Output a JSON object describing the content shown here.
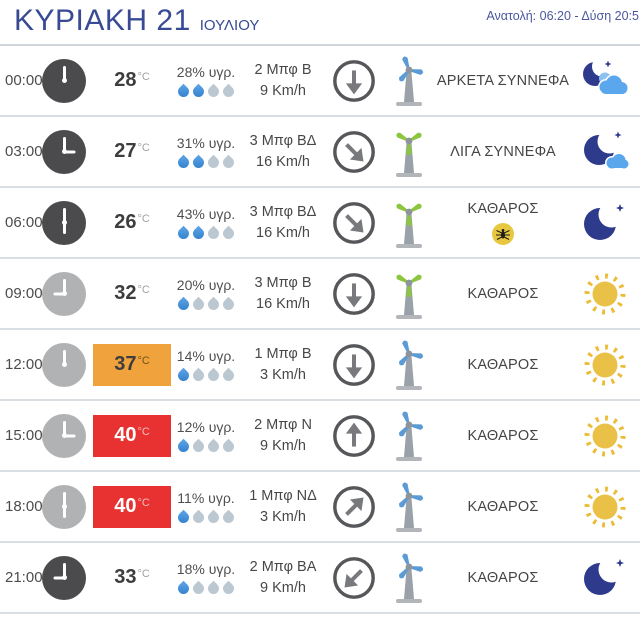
{
  "header": {
    "day": "ΚΥΡΙΑΚΗ 21",
    "month": "ΙΟΥΛΙΟΥ",
    "sun_times": "Ανατολή: 06:20 - Δύση 20:5"
  },
  "colors": {
    "accent_blue": "#394a94",
    "badge_orange": "#f0a23d",
    "badge_red": "#e73231",
    "drop_active": "#2e7cc9",
    "drop_inactive": "#bcc8d1",
    "turbine_blue": "#5b9bd5",
    "turbine_green": "#8cc63f",
    "moon_navy": "#2e3a8c",
    "sun_yellow": "#e9c147",
    "sun_ray_yellow": "#ecbc38",
    "cloud_blue": "#5aa7ee",
    "mosquito_yellow": "#e7c73f",
    "clock_night": "#4b4b4d",
    "clock_day": "#b1b2b4"
  },
  "rows": [
    {
      "time": "00:00",
      "period": "night",
      "clock_hour_deg": 0,
      "temp": "28",
      "temp_unit": "°C",
      "temp_badge": "none",
      "humidity": "28% υγρ.",
      "drops_active": 2,
      "drops_total": 4,
      "wind_beaufort": "2 Μπφ Β",
      "wind_speed": "9 Km/h",
      "wind_arrow_deg": 180,
      "turbine_color": "blue",
      "condition": "ΑΡΚΕΤΑ ΣΥΝΝΕΦΑ",
      "mosquito": false,
      "weather_icon": "moon-clouds"
    },
    {
      "time": "03:00",
      "period": "night",
      "clock_hour_deg": 90,
      "temp": "27",
      "temp_unit": "°C",
      "temp_badge": "none",
      "humidity": "31% υγρ.",
      "drops_active": 2,
      "drops_total": 4,
      "wind_beaufort": "3 Μπφ ΒΔ",
      "wind_speed": "16 Km/h",
      "wind_arrow_deg": 135,
      "turbine_color": "green",
      "condition": "ΛΙΓΑ ΣΥΝΝΕΦΑ",
      "mosquito": false,
      "weather_icon": "moon-few-clouds"
    },
    {
      "time": "06:00",
      "period": "night",
      "clock_hour_deg": 180,
      "temp": "26",
      "temp_unit": "°C",
      "temp_badge": "none",
      "humidity": "43% υγρ.",
      "drops_active": 2,
      "drops_total": 4,
      "wind_beaufort": "3 Μπφ ΒΔ",
      "wind_speed": "16 Km/h",
      "wind_arrow_deg": 135,
      "turbine_color": "green",
      "condition": "ΚΑΘΑΡΟΣ",
      "mosquito": true,
      "weather_icon": "moon"
    },
    {
      "time": "09:00",
      "period": "day",
      "clock_hour_deg": 270,
      "temp": "32",
      "temp_unit": "°C",
      "temp_badge": "none",
      "humidity": "20% υγρ.",
      "drops_active": 1,
      "drops_total": 4,
      "wind_beaufort": "3 Μπφ Β",
      "wind_speed": "16 Km/h",
      "wind_arrow_deg": 180,
      "turbine_color": "green",
      "condition": "ΚΑΘΑΡΟΣ",
      "mosquito": false,
      "weather_icon": "sun"
    },
    {
      "time": "12:00",
      "period": "day",
      "clock_hour_deg": 0,
      "temp": "37",
      "temp_unit": "°C",
      "temp_badge": "orange",
      "humidity": "14% υγρ.",
      "drops_active": 1,
      "drops_total": 4,
      "wind_beaufort": "1 Μπφ Β",
      "wind_speed": "3 Km/h",
      "wind_arrow_deg": 180,
      "turbine_color": "blue",
      "condition": "ΚΑΘΑΡΟΣ",
      "mosquito": false,
      "weather_icon": "sun"
    },
    {
      "time": "15:00",
      "period": "day",
      "clock_hour_deg": 90,
      "temp": "40",
      "temp_unit": "°C",
      "temp_badge": "red",
      "humidity": "12% υγρ.",
      "drops_active": 1,
      "drops_total": 4,
      "wind_beaufort": "2 Μπφ Ν",
      "wind_speed": "9 Km/h",
      "wind_arrow_deg": 0,
      "turbine_color": "blue",
      "condition": "ΚΑΘΑΡΟΣ",
      "mosquito": false,
      "weather_icon": "sun"
    },
    {
      "time": "18:00",
      "period": "day",
      "clock_hour_deg": 180,
      "temp": "40",
      "temp_unit": "°C",
      "temp_badge": "red",
      "humidity": "11% υγρ.",
      "drops_active": 1,
      "drops_total": 4,
      "wind_beaufort": "1 Μπφ ΝΔ",
      "wind_speed": "3 Km/h",
      "wind_arrow_deg": 45,
      "turbine_color": "blue",
      "condition": "ΚΑΘΑΡΟΣ",
      "mosquito": false,
      "weather_icon": "sun"
    },
    {
      "time": "21:00",
      "period": "night",
      "clock_hour_deg": 270,
      "temp": "33",
      "temp_unit": "°C",
      "temp_badge": "none",
      "humidity": "18% υγρ.",
      "drops_active": 1,
      "drops_total": 4,
      "wind_beaufort": "2 Μπφ ΒΑ",
      "wind_speed": "9 Km/h",
      "wind_arrow_deg": 225,
      "turbine_color": "blue",
      "condition": "ΚΑΘΑΡΟΣ",
      "mosquito": false,
      "weather_icon": "moon"
    }
  ]
}
